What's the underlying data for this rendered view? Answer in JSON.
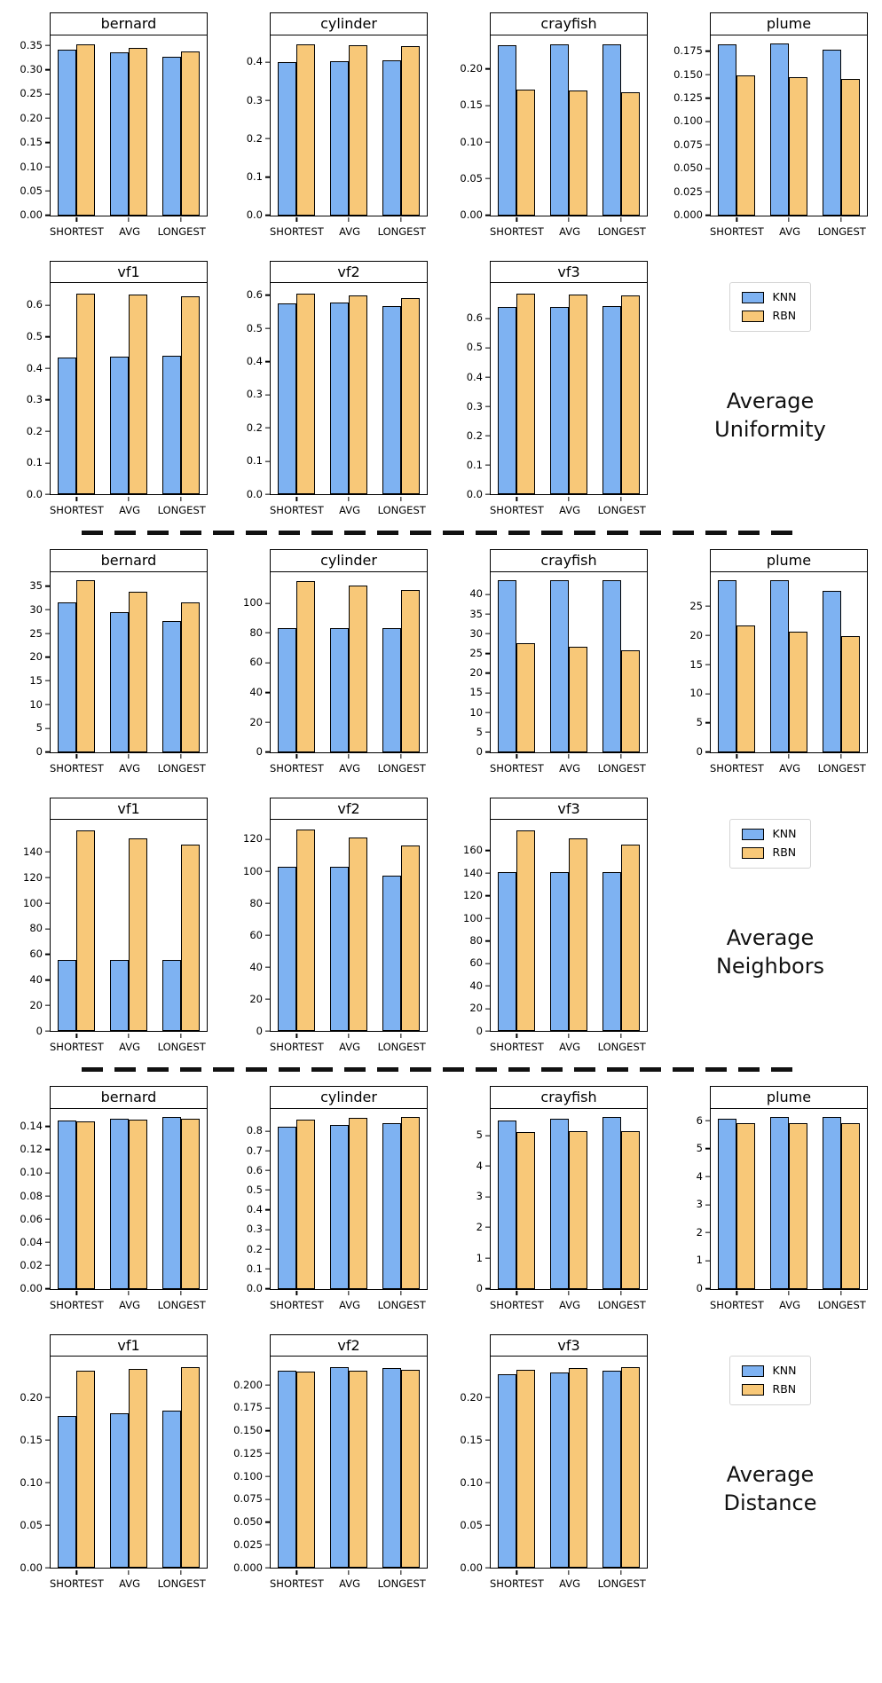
{
  "colors": {
    "knn": "#7EB2F2",
    "rbn": "#F8C878",
    "bar_edge": "#000000",
    "separator": "#111111"
  },
  "categories": [
    "SHORTEST",
    "AVG",
    "LONGEST"
  ],
  "legend": {
    "items": [
      "KNN",
      "RBN"
    ]
  },
  "sections": [
    {
      "label": "Average\nUniformity",
      "chart_indices": [
        0,
        1,
        2,
        3,
        4,
        5,
        6
      ]
    },
    {
      "label": "Average\nNeighbors",
      "chart_indices": [
        7,
        8,
        9,
        10,
        11,
        12,
        13
      ]
    },
    {
      "label": "Average\nDistance",
      "chart_indices": [
        14,
        15,
        16,
        17,
        18,
        19,
        20
      ]
    }
  ],
  "chart_data": [
    {
      "type": "bar",
      "section": "Average Uniformity",
      "title": "bernard",
      "categories": [
        "SHORTEST",
        "AVG",
        "LONGEST"
      ],
      "series": [
        {
          "name": "KNN",
          "values": [
            0.342,
            0.335,
            0.327
          ]
        },
        {
          "name": "RBN",
          "values": [
            0.353,
            0.345,
            0.337
          ]
        }
      ],
      "yticks": [
        0,
        0.05,
        0.1,
        0.15,
        0.2,
        0.25,
        0.3,
        0.35
      ],
      "ytick_labels": [
        "0.00",
        "0.05",
        "0.10",
        "0.15",
        "0.20",
        "0.25",
        "0.30",
        "0.35"
      ],
      "ylim": [
        0,
        0.371
      ]
    },
    {
      "type": "bar",
      "section": "Average Uniformity",
      "title": "cylinder",
      "categories": [
        "SHORTEST",
        "AVG",
        "LONGEST"
      ],
      "series": [
        {
          "name": "KNN",
          "values": [
            0.4,
            0.402,
            0.404
          ]
        },
        {
          "name": "RBN",
          "values": [
            0.447,
            0.445,
            0.442
          ]
        }
      ],
      "yticks": [
        0,
        0.1,
        0.2,
        0.3,
        0.4
      ],
      "ytick_labels": [
        "0.0",
        "0.1",
        "0.2",
        "0.3",
        "0.4"
      ],
      "ylim": [
        0,
        0.47
      ]
    },
    {
      "type": "bar",
      "section": "Average Uniformity",
      "title": "crayfish",
      "categories": [
        "SHORTEST",
        "AVG",
        "LONGEST"
      ],
      "series": [
        {
          "name": "KNN",
          "values": [
            0.232,
            0.233,
            0.234
          ]
        },
        {
          "name": "RBN",
          "values": [
            0.172,
            0.17,
            0.168
          ]
        }
      ],
      "yticks": [
        0,
        0.05,
        0.1,
        0.15,
        0.2
      ],
      "ytick_labels": [
        "0.00",
        "0.05",
        "0.10",
        "0.15",
        "0.20"
      ],
      "ylim": [
        0,
        0.246
      ]
    },
    {
      "type": "bar",
      "section": "Average Uniformity",
      "title": "plume",
      "categories": [
        "SHORTEST",
        "AVG",
        "LONGEST"
      ],
      "series": [
        {
          "name": "KNN",
          "values": [
            0.182,
            0.183,
            0.177
          ]
        },
        {
          "name": "RBN",
          "values": [
            0.149,
            0.147,
            0.145
          ]
        }
      ],
      "yticks": [
        0,
        0.025,
        0.05,
        0.075,
        0.1,
        0.125,
        0.15,
        0.175
      ],
      "ytick_labels": [
        "0.000",
        "0.025",
        "0.050",
        "0.075",
        "0.100",
        "0.125",
        "0.150",
        "0.175"
      ],
      "ylim": [
        0,
        0.192
      ]
    },
    {
      "type": "bar",
      "section": "Average Uniformity",
      "title": "vf1",
      "categories": [
        "SHORTEST",
        "AVG",
        "LONGEST"
      ],
      "series": [
        {
          "name": "KNN",
          "values": [
            0.435,
            0.437,
            0.44
          ]
        },
        {
          "name": "RBN",
          "values": [
            0.637,
            0.633,
            0.628
          ]
        }
      ],
      "yticks": [
        0,
        0.1,
        0.2,
        0.3,
        0.4,
        0.5,
        0.6
      ],
      "ytick_labels": [
        "0.0",
        "0.1",
        "0.2",
        "0.3",
        "0.4",
        "0.5",
        "0.6"
      ],
      "ylim": [
        0,
        0.669
      ]
    },
    {
      "type": "bar",
      "section": "Average Uniformity",
      "title": "vf2",
      "categories": [
        "SHORTEST",
        "AVG",
        "LONGEST"
      ],
      "series": [
        {
          "name": "KNN",
          "values": [
            0.575,
            0.578,
            0.566
          ]
        },
        {
          "name": "RBN",
          "values": [
            0.605,
            0.598,
            0.592
          ]
        }
      ],
      "yticks": [
        0,
        0.1,
        0.2,
        0.3,
        0.4,
        0.5,
        0.6
      ],
      "ytick_labels": [
        "0.0",
        "0.1",
        "0.2",
        "0.3",
        "0.4",
        "0.5",
        "0.6"
      ],
      "ylim": [
        0,
        0.635
      ]
    },
    {
      "type": "bar",
      "section": "Average Uniformity",
      "title": "vf3",
      "categories": [
        "SHORTEST",
        "AVG",
        "LONGEST"
      ],
      "series": [
        {
          "name": "KNN",
          "values": [
            0.64,
            0.64,
            0.643
          ]
        },
        {
          "name": "RBN",
          "values": [
            0.685,
            0.682,
            0.677
          ]
        }
      ],
      "yticks": [
        0,
        0.1,
        0.2,
        0.3,
        0.4,
        0.5,
        0.6
      ],
      "ytick_labels": [
        "0.0",
        "0.1",
        "0.2",
        "0.3",
        "0.4",
        "0.5",
        "0.6"
      ],
      "ylim": [
        0,
        0.719
      ]
    },
    {
      "type": "bar",
      "section": "Average Neighbors",
      "title": "bernard",
      "categories": [
        "SHORTEST",
        "AVG",
        "LONGEST"
      ],
      "series": [
        {
          "name": "KNN",
          "values": [
            31.5,
            29.5,
            27.6
          ]
        },
        {
          "name": "RBN",
          "values": [
            36.2,
            33.8,
            31.6
          ]
        }
      ],
      "yticks": [
        0,
        5,
        10,
        15,
        20,
        25,
        30,
        35
      ],
      "ytick_labels": [
        "0",
        "5",
        "10",
        "15",
        "20",
        "25",
        "30",
        "35"
      ],
      "ylim": [
        0,
        38
      ]
    },
    {
      "type": "bar",
      "section": "Average Neighbors",
      "title": "cylinder",
      "categories": [
        "SHORTEST",
        "AVG",
        "LONGEST"
      ],
      "series": [
        {
          "name": "KNN",
          "values": [
            83,
            83,
            83
          ]
        },
        {
          "name": "RBN",
          "values": [
            115,
            112,
            109
          ]
        }
      ],
      "yticks": [
        0,
        20,
        40,
        60,
        80,
        100
      ],
      "ytick_labels": [
        "0",
        "20",
        "40",
        "60",
        "80",
        "100"
      ],
      "ylim": [
        0,
        121
      ]
    },
    {
      "type": "bar",
      "section": "Average Neighbors",
      "title": "crayfish",
      "categories": [
        "SHORTEST",
        "AVG",
        "LONGEST"
      ],
      "series": [
        {
          "name": "KNN",
          "values": [
            43.5,
            43.5,
            43.5
          ]
        },
        {
          "name": "RBN",
          "values": [
            27.7,
            26.6,
            25.7
          ]
        }
      ],
      "yticks": [
        0,
        5,
        10,
        15,
        20,
        25,
        30,
        35,
        40
      ],
      "ytick_labels": [
        "0",
        "5",
        "10",
        "15",
        "20",
        "25",
        "30",
        "35",
        "40"
      ],
      "ylim": [
        0,
        45.7
      ]
    },
    {
      "type": "bar",
      "section": "Average Neighbors",
      "title": "plume",
      "categories": [
        "SHORTEST",
        "AVG",
        "LONGEST"
      ],
      "series": [
        {
          "name": "KNN",
          "values": [
            29.4,
            29.4,
            27.7
          ]
        },
        {
          "name": "RBN",
          "values": [
            21.7,
            20.7,
            19.9
          ]
        }
      ],
      "yticks": [
        0,
        5,
        10,
        15,
        20,
        25
      ],
      "ytick_labels": [
        "0",
        "5",
        "10",
        "15",
        "20",
        "25"
      ],
      "ylim": [
        0,
        30.9
      ]
    },
    {
      "type": "bar",
      "section": "Average Neighbors",
      "title": "vf1",
      "categories": [
        "SHORTEST",
        "AVG",
        "LONGEST"
      ],
      "series": [
        {
          "name": "KNN",
          "values": [
            56,
            56,
            56
          ]
        },
        {
          "name": "RBN",
          "values": [
            157,
            151,
            146
          ]
        }
      ],
      "yticks": [
        0,
        20,
        40,
        60,
        80,
        100,
        120,
        140
      ],
      "ytick_labels": [
        "0",
        "20",
        "40",
        "60",
        "80",
        "100",
        "120",
        "140"
      ],
      "ylim": [
        0,
        165
      ]
    },
    {
      "type": "bar",
      "section": "Average Neighbors",
      "title": "vf2",
      "categories": [
        "SHORTEST",
        "AVG",
        "LONGEST"
      ],
      "series": [
        {
          "name": "KNN",
          "values": [
            103,
            103,
            97
          ]
        },
        {
          "name": "RBN",
          "values": [
            126,
            121,
            116
          ]
        }
      ],
      "yticks": [
        0,
        20,
        40,
        60,
        80,
        100,
        120
      ],
      "ytick_labels": [
        "0",
        "20",
        "40",
        "60",
        "80",
        "100",
        "120"
      ],
      "ylim": [
        0,
        132
      ]
    },
    {
      "type": "bar",
      "section": "Average Neighbors",
      "title": "vf3",
      "categories": [
        "SHORTEST",
        "AVG",
        "LONGEST"
      ],
      "series": [
        {
          "name": "KNN",
          "values": [
            141,
            141,
            141
          ]
        },
        {
          "name": "RBN",
          "values": [
            178,
            171,
            165
          ]
        }
      ],
      "yticks": [
        0,
        20,
        40,
        60,
        80,
        100,
        120,
        140,
        160
      ],
      "ytick_labels": [
        "0",
        "20",
        "40",
        "60",
        "80",
        "100",
        "120",
        "140",
        "160"
      ],
      "ylim": [
        0,
        187
      ]
    },
    {
      "type": "bar",
      "section": "Average Distance",
      "title": "bernard",
      "categories": [
        "SHORTEST",
        "AVG",
        "LONGEST"
      ],
      "series": [
        {
          "name": "KNN",
          "values": [
            0.145,
            0.147,
            0.148
          ]
        },
        {
          "name": "RBN",
          "values": [
            0.1445,
            0.1455,
            0.147
          ]
        }
      ],
      "yticks": [
        0,
        0.02,
        0.04,
        0.06,
        0.08,
        0.1,
        0.12,
        0.14
      ],
      "ytick_labels": [
        "0.00",
        "0.02",
        "0.04",
        "0.06",
        "0.08",
        "0.10",
        "0.12",
        "0.14"
      ],
      "ylim": [
        0,
        0.1554
      ]
    },
    {
      "type": "bar",
      "section": "Average Distance",
      "title": "cylinder",
      "categories": [
        "SHORTEST",
        "AVG",
        "LONGEST"
      ],
      "series": [
        {
          "name": "KNN",
          "values": [
            0.82,
            0.83,
            0.84
          ]
        },
        {
          "name": "RBN",
          "values": [
            0.86,
            0.865,
            0.87
          ]
        }
      ],
      "yticks": [
        0,
        0.1,
        0.2,
        0.3,
        0.4,
        0.5,
        0.6,
        0.7,
        0.8
      ],
      "ytick_labels": [
        "0.0",
        "0.1",
        "0.2",
        "0.3",
        "0.4",
        "0.5",
        "0.6",
        "0.7",
        "0.8"
      ],
      "ylim": [
        0,
        0.914
      ]
    },
    {
      "type": "bar",
      "section": "Average Distance",
      "title": "crayfish",
      "categories": [
        "SHORTEST",
        "AVG",
        "LONGEST"
      ],
      "series": [
        {
          "name": "KNN",
          "values": [
            5.5,
            5.55,
            5.6
          ]
        },
        {
          "name": "RBN",
          "values": [
            5.1,
            5.13,
            5.13
          ]
        }
      ],
      "yticks": [
        0,
        1,
        2,
        3,
        4,
        5
      ],
      "ytick_labels": [
        "0",
        "1",
        "2",
        "3",
        "4",
        "5"
      ],
      "ylim": [
        0,
        5.88
      ]
    },
    {
      "type": "bar",
      "section": "Average Distance",
      "title": "plume",
      "categories": [
        "SHORTEST",
        "AVG",
        "LONGEST"
      ],
      "series": [
        {
          "name": "KNN",
          "values": [
            6.07,
            6.12,
            6.12
          ]
        },
        {
          "name": "RBN",
          "values": [
            5.9,
            5.92,
            5.92
          ]
        }
      ],
      "yticks": [
        0,
        1,
        2,
        3,
        4,
        5,
        6
      ],
      "ytick_labels": [
        "0",
        "1",
        "2",
        "3",
        "4",
        "5",
        "6"
      ],
      "ylim": [
        0,
        6.43
      ]
    },
    {
      "type": "bar",
      "section": "Average Distance",
      "title": "vf1",
      "categories": [
        "SHORTEST",
        "AVG",
        "LONGEST"
      ],
      "series": [
        {
          "name": "KNN",
          "values": [
            0.178,
            0.182,
            0.185
          ]
        },
        {
          "name": "RBN",
          "values": [
            0.232,
            0.234,
            0.236
          ]
        }
      ],
      "yticks": [
        0,
        0.05,
        0.1,
        0.15,
        0.2
      ],
      "ytick_labels": [
        "0.00",
        "0.05",
        "0.10",
        "0.15",
        "0.20"
      ],
      "ylim": [
        0,
        0.248
      ]
    },
    {
      "type": "bar",
      "section": "Average Distance",
      "title": "vf2",
      "categories": [
        "SHORTEST",
        "AVG",
        "LONGEST"
      ],
      "series": [
        {
          "name": "KNN",
          "values": [
            0.216,
            0.22,
            0.219
          ]
        },
        {
          "name": "RBN",
          "values": [
            0.215,
            0.216,
            0.217
          ]
        }
      ],
      "yticks": [
        0,
        0.025,
        0.05,
        0.075,
        0.1,
        0.125,
        0.15,
        0.175,
        0.2
      ],
      "ytick_labels": [
        "0.000",
        "0.025",
        "0.050",
        "0.075",
        "0.100",
        "0.125",
        "0.150",
        "0.175",
        "0.200"
      ],
      "ylim": [
        0,
        0.231
      ]
    },
    {
      "type": "bar",
      "section": "Average Distance",
      "title": "vf3",
      "categories": [
        "SHORTEST",
        "AVG",
        "LONGEST"
      ],
      "series": [
        {
          "name": "KNN",
          "values": [
            0.227,
            0.229,
            0.232
          ]
        },
        {
          "name": "RBN",
          "values": [
            0.233,
            0.235,
            0.236
          ]
        }
      ],
      "yticks": [
        0,
        0.05,
        0.1,
        0.15,
        0.2
      ],
      "ytick_labels": [
        "0.00",
        "0.05",
        "0.10",
        "0.15",
        "0.20"
      ],
      "ylim": [
        0,
        0.248
      ]
    }
  ]
}
